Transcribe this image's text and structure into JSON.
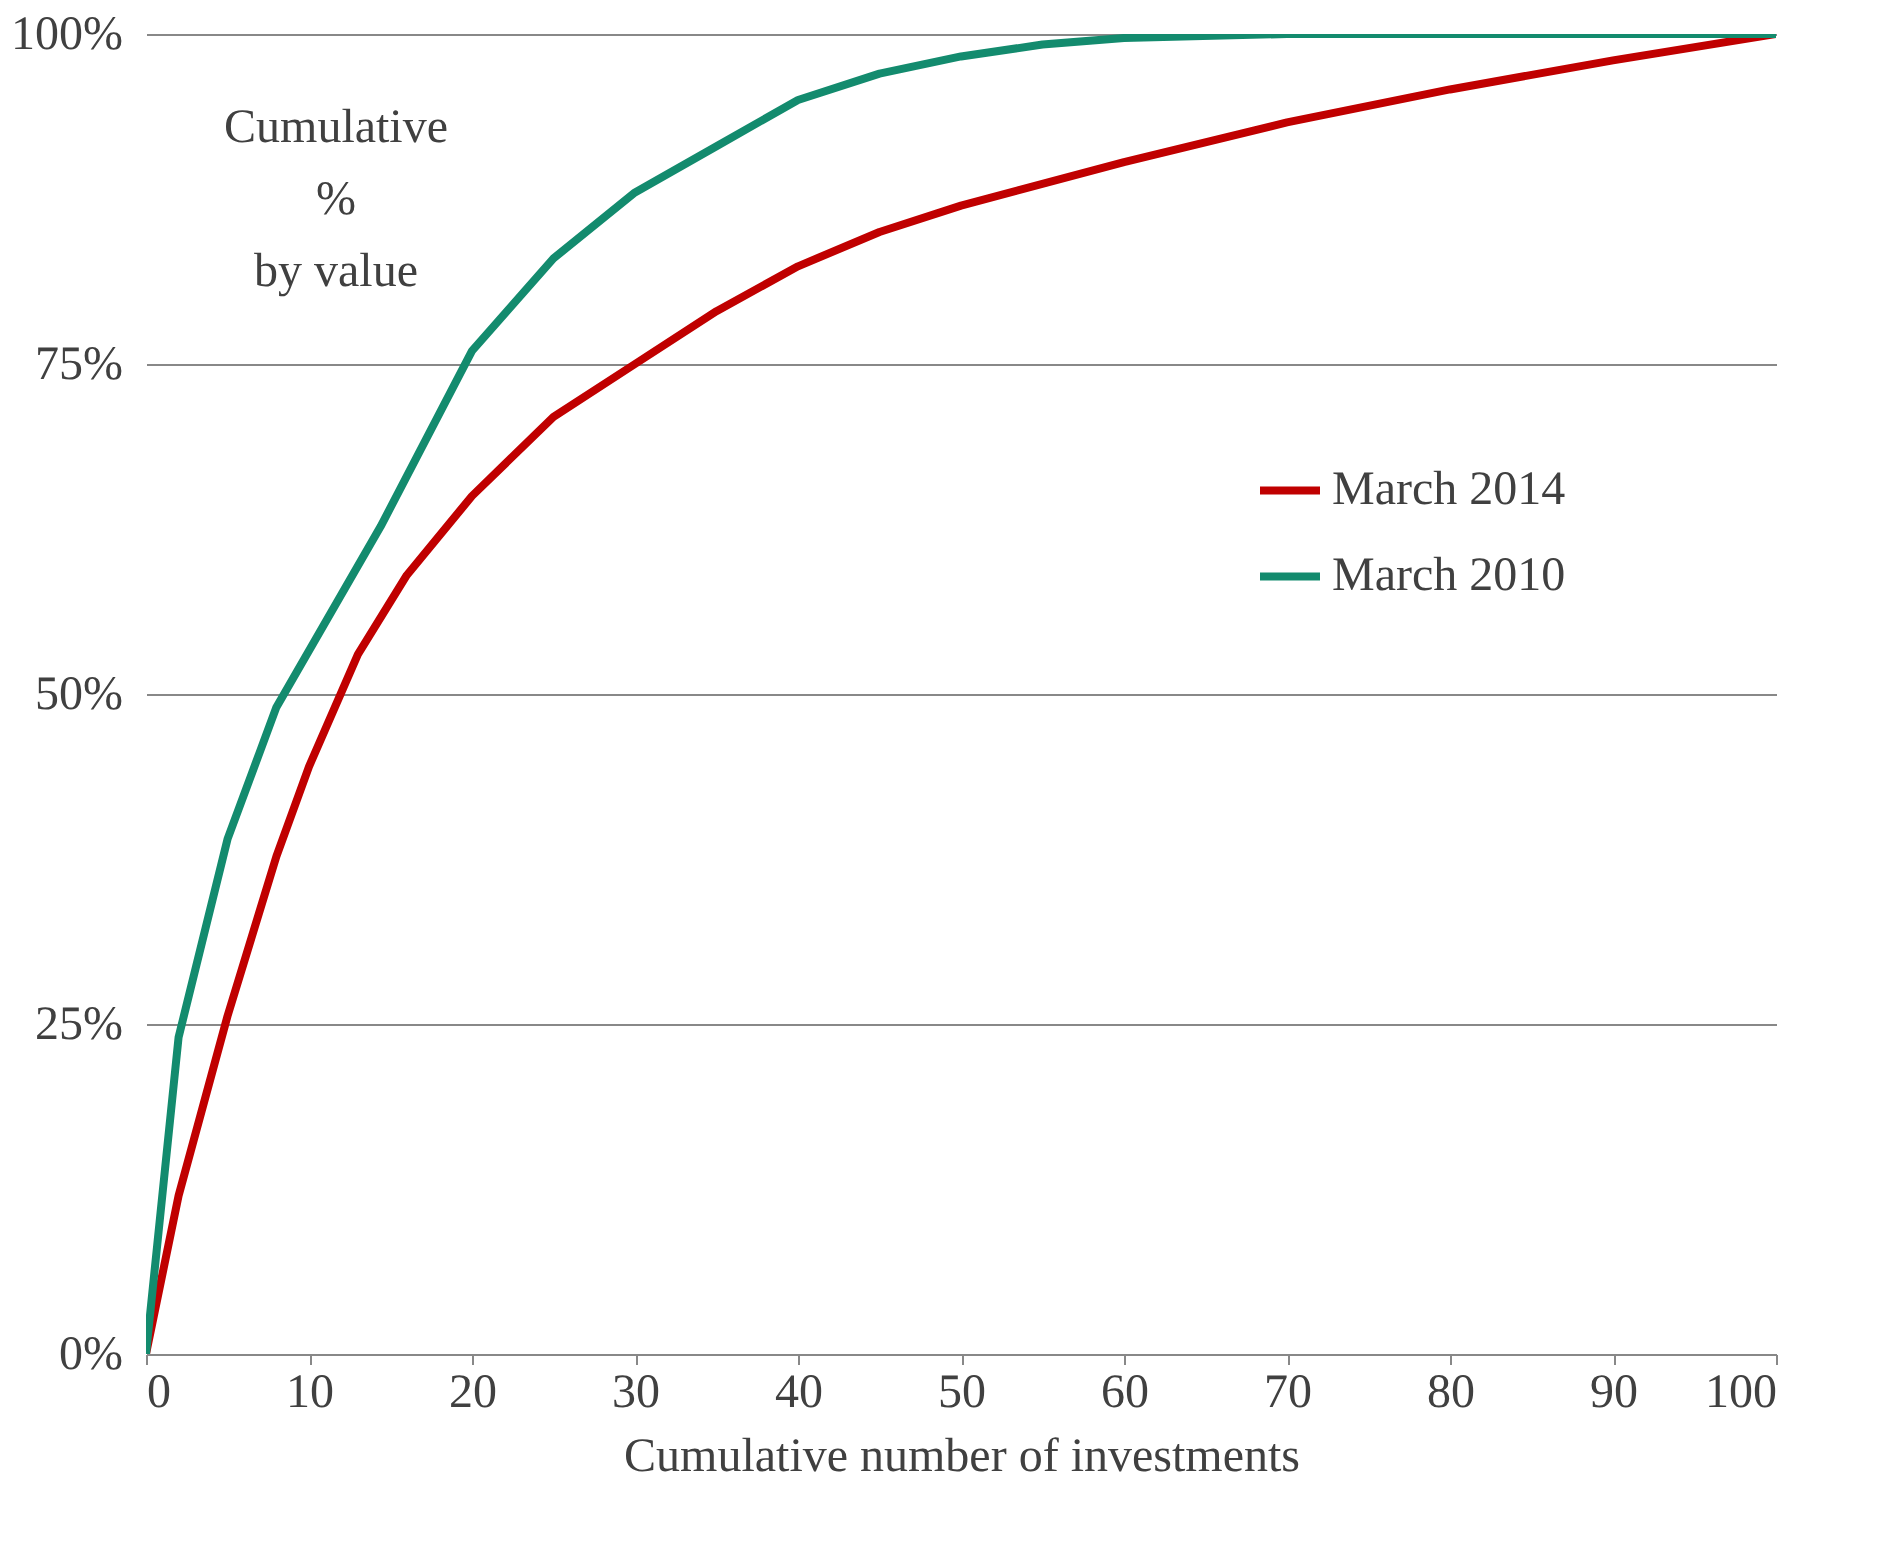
{
  "chart_data": {
    "type": "line",
    "xlabel": "Cumulative number of investments",
    "annotations": [
      "Cumulative\n%\nby value"
    ],
    "xlim": [
      0,
      100
    ],
    "xticks": [
      0,
      10,
      20,
      30,
      40,
      50,
      60,
      70,
      80,
      90,
      100
    ],
    "ylim": [
      0,
      100
    ],
    "yticks": [
      {
        "value": 0,
        "label": "0%"
      },
      {
        "value": 25,
        "label": "25%"
      },
      {
        "value": 50,
        "label": "50%"
      },
      {
        "value": 75,
        "label": "75%"
      },
      {
        "value": 100,
        "label": "100%"
      }
    ],
    "grid": "y",
    "legend": "right",
    "line_style": "solid",
    "marker": "none",
    "series": [
      {
        "name": "March 2014",
        "color": "#c00000",
        "x": [
          0,
          2,
          5,
          8,
          10,
          13,
          16,
          20,
          25,
          30,
          35,
          40,
          45,
          50,
          60,
          70,
          80,
          90,
          100
        ],
        "values": [
          0,
          12,
          25.6,
          37.7,
          44.5,
          53,
          59,
          65,
          71,
          75,
          79,
          82.4,
          85,
          87,
          90.3,
          93.3,
          95.8,
          98,
          100
        ]
      },
      {
        "name": "March 2010",
        "color": "#138b6e",
        "x": [
          0,
          2,
          5,
          8,
          14.4,
          20,
          25,
          30,
          35,
          40,
          45,
          50,
          55,
          60,
          70,
          100
        ],
        "values": [
          0,
          24,
          39,
          49,
          62.7,
          76,
          83,
          88,
          91.5,
          95,
          97,
          98.3,
          99.2,
          99.7,
          100,
          100
        ]
      }
    ]
  }
}
